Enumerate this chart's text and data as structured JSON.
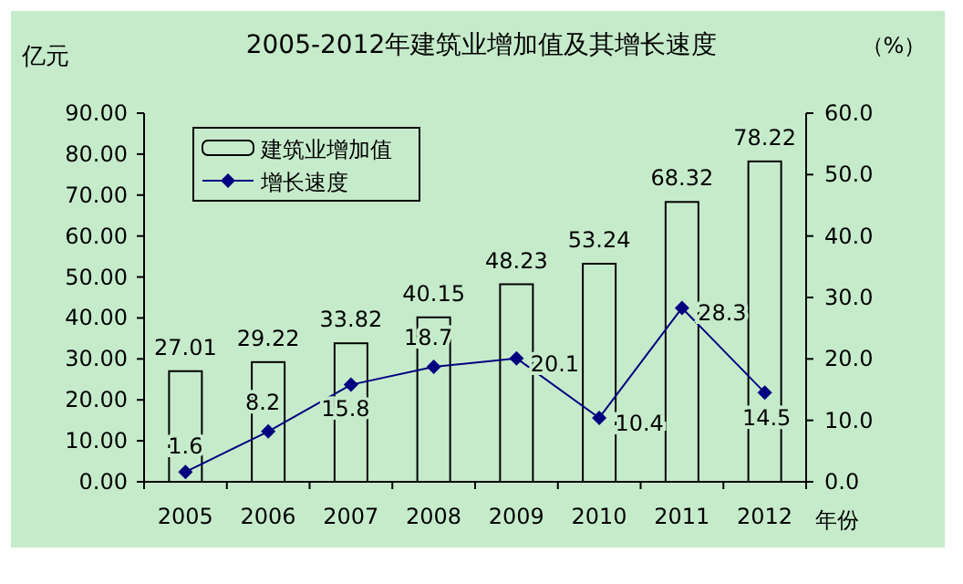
{
  "chart_data": {
    "type": "bar",
    "title": "2005-2012年建筑业增加值及其增长速度",
    "xlabel": "年份",
    "ylabel": "亿元",
    "y2label": "（%）",
    "categories": [
      "2005",
      "2006",
      "2007",
      "2008",
      "2009",
      "2010",
      "2011",
      "2012"
    ],
    "series": [
      {
        "name": "建筑业增加值",
        "color": "#000000",
        "values": [
          27.01,
          29.22,
          33.82,
          40.15,
          48.23,
          53.24,
          68.32,
          78.22
        ]
      },
      {
        "name": "增长速度",
        "type": "line",
        "axis": "y2",
        "color": "#000080",
        "marker": "diamond",
        "values": [
          1.6,
          8.2,
          15.8,
          18.7,
          20.1,
          10.4,
          28.3,
          14.5
        ]
      }
    ],
    "ylim": [
      0,
      90
    ],
    "yticks": [
      {
        "value": 0,
        "label": "0.00"
      },
      {
        "value": 10,
        "label": "10.00"
      },
      {
        "value": 20,
        "label": "20.00"
      },
      {
        "value": 30,
        "label": "30.00"
      },
      {
        "value": 40,
        "label": "40.00"
      },
      {
        "value": 50,
        "label": "50.00"
      },
      {
        "value": 60,
        "label": "60.00"
      },
      {
        "value": 70,
        "label": "70.00"
      },
      {
        "value": 80,
        "label": "80.00"
      },
      {
        "value": 90,
        "label": "90.00"
      }
    ],
    "y2lim": [
      0,
      60
    ],
    "y2ticks": [
      {
        "value": 0,
        "label": "0.0"
      },
      {
        "value": 10,
        "label": "10.0"
      },
      {
        "value": 20,
        "label": "20.0"
      },
      {
        "value": 30,
        "label": "30.0"
      },
      {
        "value": 40,
        "label": "40.0"
      },
      {
        "value": 50,
        "label": "50.0"
      },
      {
        "value": 60,
        "label": "60.0"
      }
    ],
    "data_labels": true,
    "legend": "top left",
    "grid": false
  }
}
